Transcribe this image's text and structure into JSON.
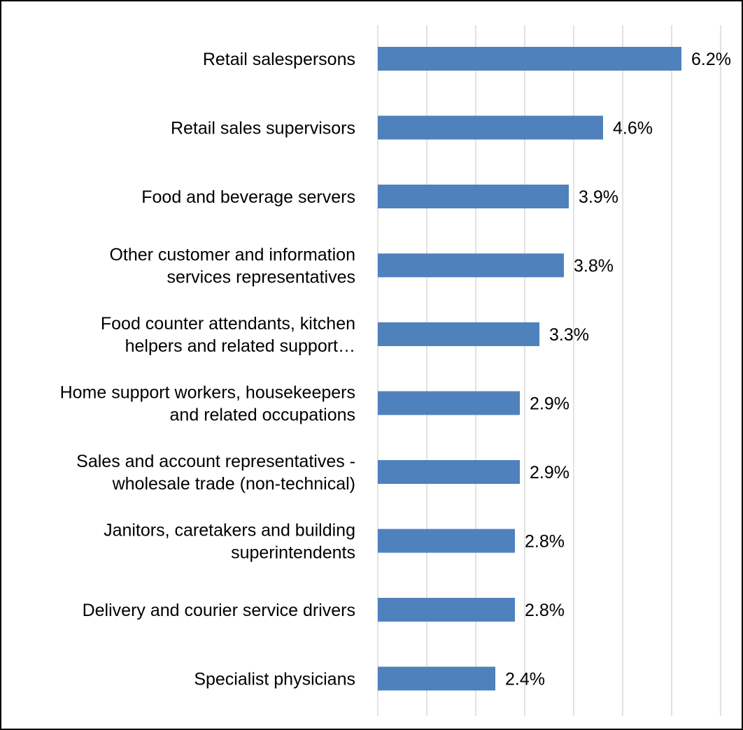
{
  "chart_data": {
    "type": "bar",
    "orientation": "horizontal",
    "title": "",
    "xlabel": "",
    "ylabel": "",
    "categories": [
      [
        "Retail salespersons"
      ],
      [
        "Retail sales supervisors"
      ],
      [
        "Food and beverage servers"
      ],
      [
        "Other customer and information",
        "services representatives"
      ],
      [
        "Food counter attendants, kitchen",
        "helpers and related support…"
      ],
      [
        "Home support workers, housekeepers",
        "and related occupations"
      ],
      [
        "Sales and account representatives -",
        "wholesale trade (non-technical)"
      ],
      [
        "Janitors, caretakers and building",
        "superintendents"
      ],
      [
        "Delivery and courier service drivers"
      ],
      [
        "Specialist physicians"
      ]
    ],
    "values": [
      6.2,
      4.6,
      3.9,
      3.8,
      3.3,
      2.9,
      2.9,
      2.8,
      2.8,
      2.4
    ],
    "value_labels": [
      "6.2%",
      "4.6%",
      "3.9%",
      "3.8%",
      "3.3%",
      "2.9%",
      "2.9%",
      "2.8%",
      "2.8%",
      "2.4%"
    ],
    "xlim": [
      0,
      7
    ],
    "grid": true,
    "legend": "none",
    "colors": {
      "bar": "#4f81bd",
      "gridline": "#d9d9d9",
      "text": "#000000"
    }
  }
}
